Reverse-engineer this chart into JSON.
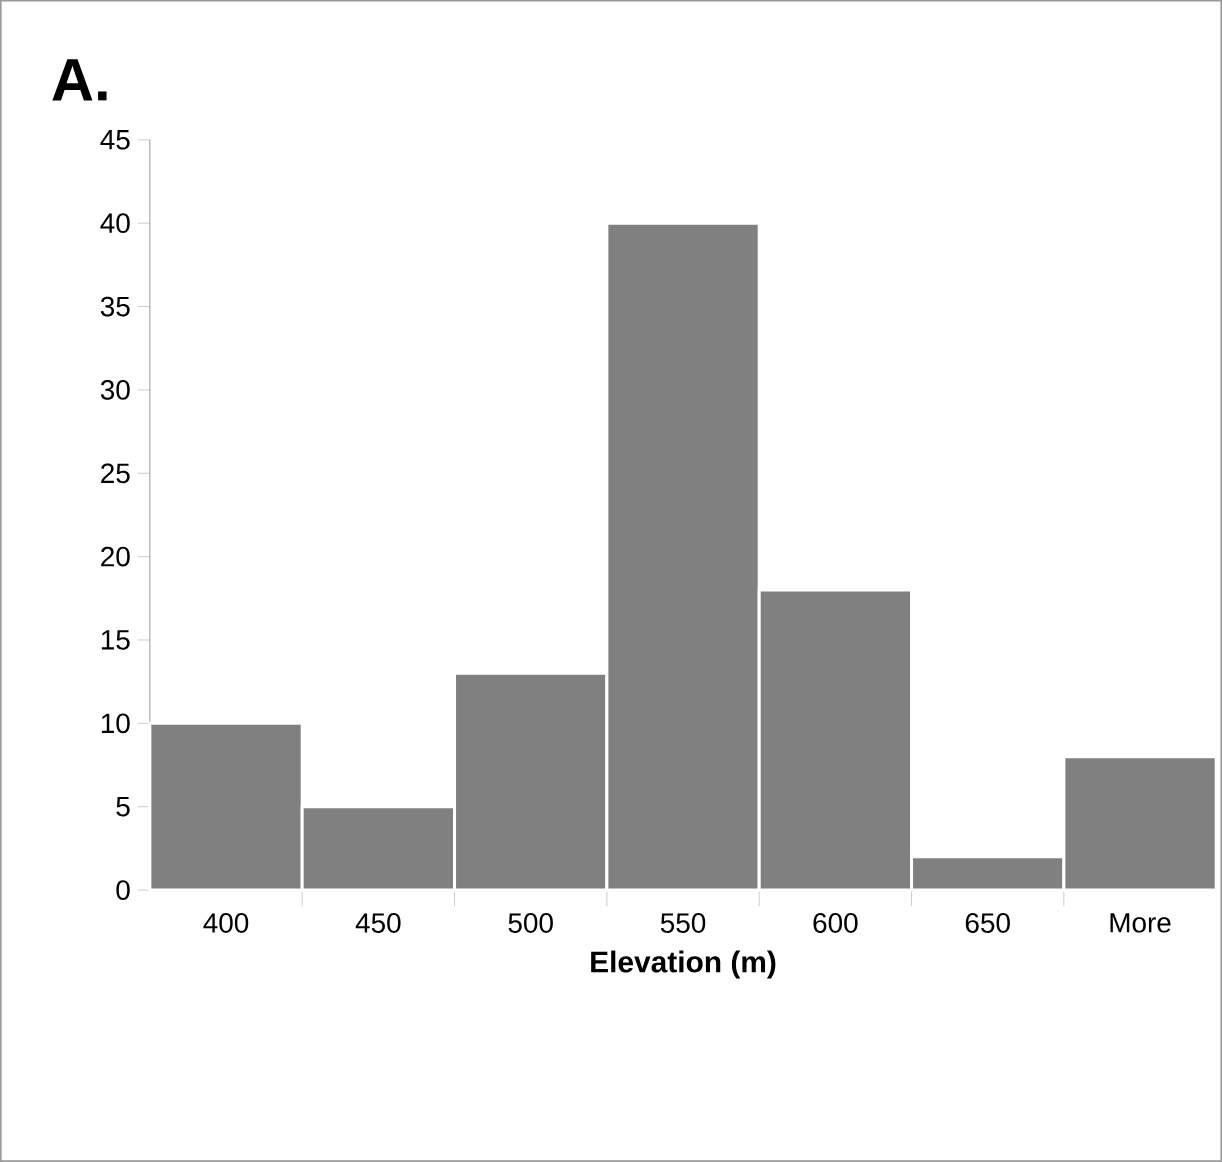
{
  "chart_data": {
    "type": "bar",
    "title": "A.",
    "xlabel": "Elevation (m)",
    "categories": [
      "400",
      "450",
      "500",
      "550",
      "600",
      "650",
      "More"
    ],
    "values": [
      10,
      5,
      13,
      40,
      18,
      2,
      8
    ],
    "color": "#808080",
    "ylim": [
      0,
      45
    ],
    "yticks": [
      0,
      5,
      10,
      15,
      20,
      25,
      30,
      35,
      40,
      45
    ]
  }
}
